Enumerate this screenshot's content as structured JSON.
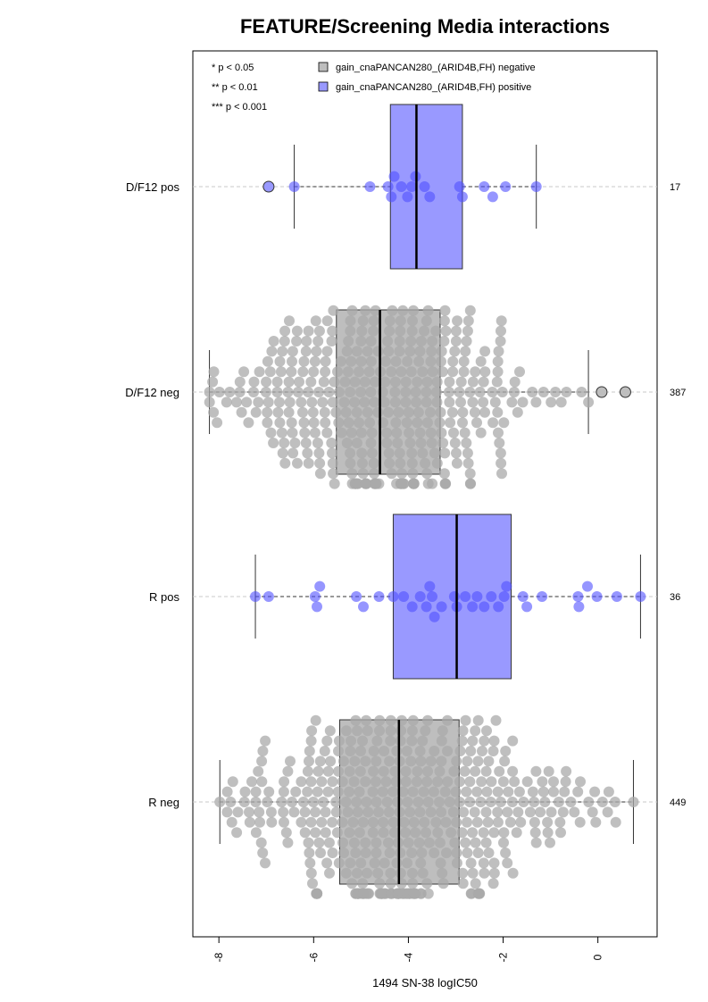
{
  "chart_data": {
    "type": "box",
    "title": "FEATURE/Screening Media interactions",
    "xlabel": "1494 SN-38 logIC50",
    "ylabel": "",
    "xlim": [
      -8.55,
      1.25
    ],
    "x_ticks": [
      -8,
      -6,
      -4,
      -2,
      0
    ],
    "x_tick_labels": [
      "-8",
      "-6",
      "-4",
      "-2",
      "0"
    ],
    "grid": false,
    "significance_legend": [
      "* p < 0.05",
      "** p < 0.01",
      "*** p < 0.001"
    ],
    "legend_placement": "top",
    "legend": [
      {
        "label": "gain_cnaPANCAN280_(ARID4B,FH) negative",
        "color": "#bebebe"
      },
      {
        "label": "gain_cnaPANCAN280_(ARID4B,FH) positive",
        "color": "#9999ff"
      }
    ],
    "groups": [
      {
        "label": "D/F12 pos",
        "count_label": "17",
        "status": "positive",
        "box": {
          "q1": -4.38,
          "median": -3.83,
          "q3": -2.86,
          "whisker_low": -6.41,
          "whisker_high": -1.3
        },
        "outliers": [
          -6.95
        ],
        "points": [
          -6.41,
          -4.81,
          -4.43,
          -4.36,
          -4.3,
          -4.15,
          -4.02,
          -3.93,
          -3.85,
          -3.66,
          -3.55,
          -2.92,
          -2.86,
          -2.4,
          -2.22,
          -1.95,
          -1.3
        ]
      },
      {
        "label": "D/F12 neg",
        "count_label": "387",
        "status": "negative",
        "box": {
          "q1": -5.52,
          "median": -4.6,
          "q3": -3.33,
          "whisker_low": -8.2,
          "whisker_high": -0.2
        },
        "outliers": [
          0.08,
          0.58
        ]
      },
      {
        "label": "R pos",
        "count_label": "36",
        "status": "positive",
        "box": {
          "q1": -4.32,
          "median": -2.98,
          "q3": -1.83,
          "whisker_low": -7.23,
          "whisker_high": 0.9
        },
        "outliers": [],
        "points": [
          -7.23,
          -6.95,
          -5.97,
          -5.93,
          -5.87,
          -5.1,
          -4.95,
          -4.62,
          -4.32,
          -4.1,
          -3.92,
          -3.75,
          -3.62,
          -3.55,
          -3.5,
          -3.45,
          -3.3,
          -3.03,
          -2.98,
          -2.8,
          -2.65,
          -2.55,
          -2.4,
          -2.25,
          -2.1,
          -1.98,
          -1.93,
          -1.58,
          -1.5,
          -1.18,
          -0.42,
          -0.4,
          -0.22,
          -0.02,
          0.4,
          0.9
        ]
      },
      {
        "label": "R neg",
        "count_label": "449",
        "status": "negative",
        "box": {
          "q1": -5.45,
          "median": -4.2,
          "q3": -2.93,
          "whisker_low": -7.98,
          "whisker_high": 0.75
        },
        "outliers": []
      }
    ]
  }
}
